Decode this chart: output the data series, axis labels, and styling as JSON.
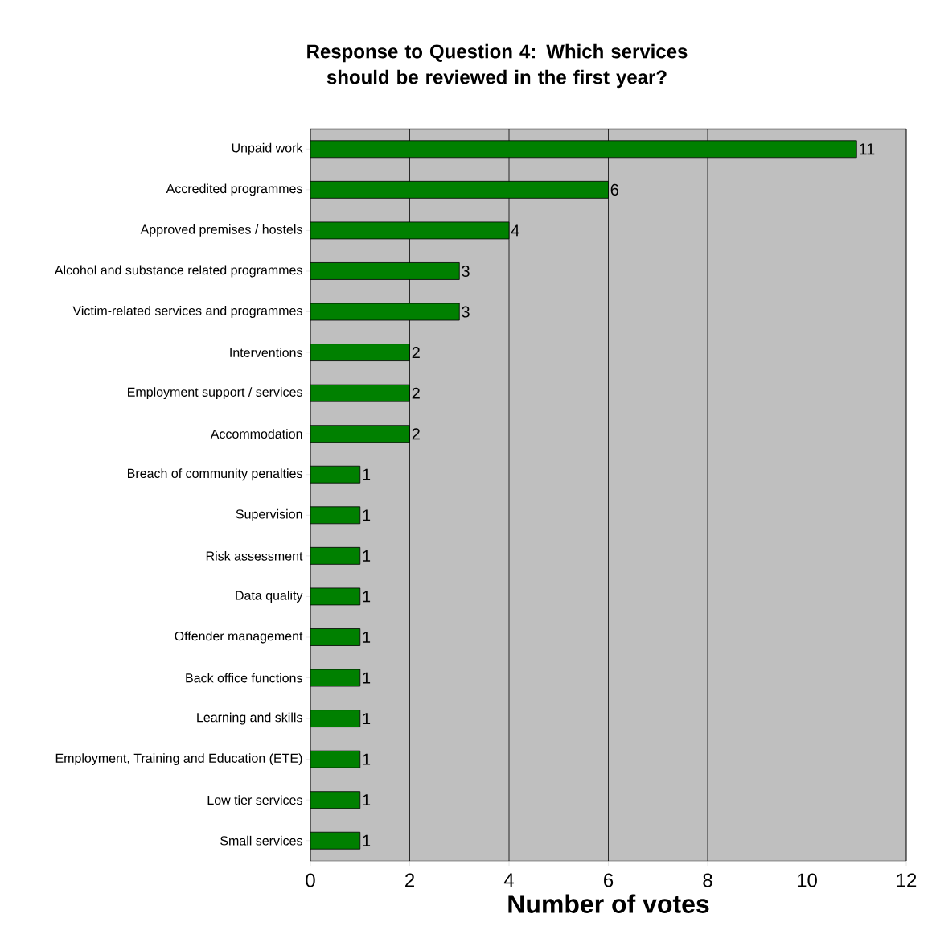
{
  "chart_data": {
    "type": "bar",
    "orientation": "horizontal",
    "title": "Response to Question 4: Which services should be reviewed in the first year?",
    "xlabel": "Number of votes",
    "categories": [
      "Unpaid work",
      "Accredited programmes",
      "Approved premises / hostels",
      "Alcohol and substance related programmes",
      "Victim-related services and programmes",
      "Interventions",
      "Employment support / services",
      "Accommodation",
      "Breach of community penalties",
      "Supervision",
      "Risk assessment",
      "Data quality",
      "Offender management",
      "Back office functions",
      "Learning and skills",
      "Employment, Training and Education (ETE)",
      "Low tier services",
      "Small services"
    ],
    "values": [
      11,
      6,
      4,
      3,
      3,
      2,
      2,
      2,
      1,
      1,
      1,
      1,
      1,
      1,
      1,
      1,
      1,
      1
    ],
    "color": "#008000",
    "xlim": [
      0,
      12
    ],
    "xticks": [
      0,
      2,
      4,
      6,
      8,
      10,
      12
    ],
    "grid": "x",
    "data_labels": true
  }
}
